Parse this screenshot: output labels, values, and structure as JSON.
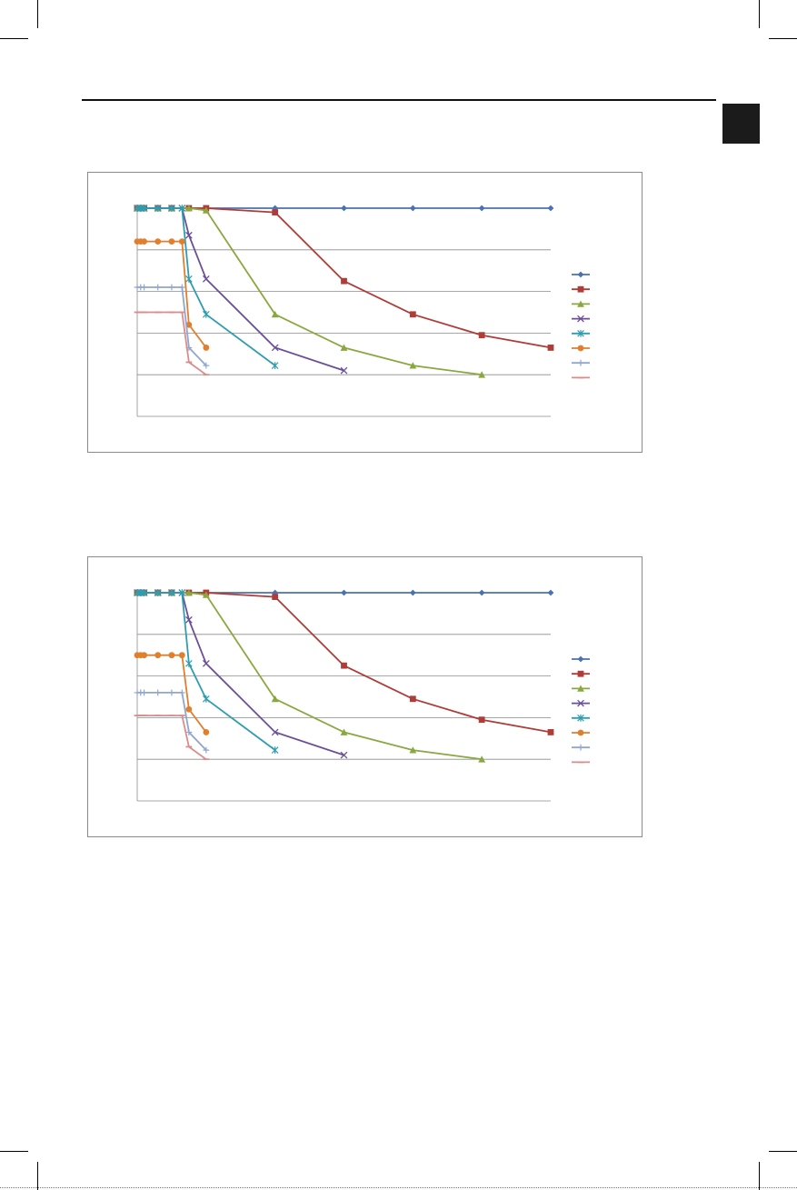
{
  "page": {
    "header_color": "#1b1b1b"
  },
  "chart_data": [
    {
      "type": "line",
      "title": "",
      "xlabel": "",
      "ylabel": "",
      "grid": true,
      "legend_position": "right",
      "x_range": [
        0,
        60
      ],
      "y_range": [
        0,
        5
      ],
      "series": [
        {
          "color": "#4a72b0",
          "marker": "diamond",
          "points": [
            [
              0,
              5
            ],
            [
              0.5,
              5
            ],
            [
              1,
              5
            ],
            [
              3,
              5
            ],
            [
              5,
              5
            ],
            [
              7.5,
              5
            ],
            [
              10,
              5
            ],
            [
              20,
              5
            ],
            [
              30,
              5
            ],
            [
              40,
              5
            ],
            [
              50,
              5
            ],
            [
              60,
              5
            ]
          ]
        },
        {
          "color": "#b03c38",
          "marker": "square",
          "points": [
            [
              0,
              5
            ],
            [
              0.5,
              5
            ],
            [
              1,
              5
            ],
            [
              3,
              5
            ],
            [
              5,
              5
            ],
            [
              7.5,
              5
            ],
            [
              10,
              5
            ],
            [
              20,
              4.9
            ],
            [
              30,
              3.25
            ],
            [
              40,
              2.45
            ],
            [
              50,
              1.95
            ],
            [
              60,
              1.65
            ]
          ]
        },
        {
          "color": "#89a83f",
          "marker": "triangle",
          "points": [
            [
              0,
              5
            ],
            [
              0.5,
              5
            ],
            [
              1,
              5
            ],
            [
              3,
              5
            ],
            [
              5,
              5
            ],
            [
              7.5,
              5
            ],
            [
              10,
              4.95
            ],
            [
              20,
              2.45
            ],
            [
              30,
              1.65
            ],
            [
              40,
              1.22
            ],
            [
              50,
              1.0
            ]
          ]
        },
        {
          "color": "#6b4f98",
          "marker": "x",
          "points": [
            [
              0,
              5
            ],
            [
              0.5,
              5
            ],
            [
              1,
              5
            ],
            [
              3,
              5
            ],
            [
              5,
              5
            ],
            [
              6.5,
              5
            ],
            [
              7.5,
              4.35
            ],
            [
              10,
              3.3
            ],
            [
              20,
              1.65
            ],
            [
              30,
              1.1
            ]
          ]
        },
        {
          "color": "#2f9db0",
          "marker": "star",
          "points": [
            [
              0,
              5
            ],
            [
              0.5,
              5
            ],
            [
              1,
              5
            ],
            [
              3,
              5
            ],
            [
              5,
              5
            ],
            [
              6.5,
              5
            ],
            [
              7.5,
              3.3
            ],
            [
              10,
              2.45
            ],
            [
              20,
              1.22
            ]
          ]
        },
        {
          "color": "#e07f2e",
          "marker": "circle",
          "points": [
            [
              0,
              4.2
            ],
            [
              0.5,
              4.2
            ],
            [
              1,
              4.2
            ],
            [
              3,
              4.2
            ],
            [
              5,
              4.2
            ],
            [
              6.5,
              4.2
            ],
            [
              7.5,
              2.2
            ],
            [
              10,
              1.65
            ]
          ]
        },
        {
          "color": "#8fa6cf",
          "marker": "plus",
          "points": [
            [
              0,
              3.1
            ],
            [
              0.5,
              3.1
            ],
            [
              1,
              3.1
            ],
            [
              3,
              3.1
            ],
            [
              5,
              3.1
            ],
            [
              6.5,
              3.1
            ],
            [
              7.5,
              1.65
            ],
            [
              10,
              1.22
            ]
          ]
        },
        {
          "color": "#d98c8c",
          "marker": "dash",
          "points": [
            [
              0,
              2.5
            ],
            [
              0.5,
              2.5
            ],
            [
              1,
              2.5
            ],
            [
              3,
              2.5
            ],
            [
              5,
              2.5
            ],
            [
              6.5,
              2.5
            ],
            [
              7.5,
              1.3
            ],
            [
              10,
              1.0
            ]
          ]
        }
      ]
    },
    {
      "type": "line",
      "title": "",
      "xlabel": "",
      "ylabel": "",
      "grid": true,
      "legend_position": "right",
      "x_range": [
        0,
        60
      ],
      "y_range": [
        0,
        5
      ],
      "series": [
        {
          "color": "#4a72b0",
          "marker": "diamond",
          "points": [
            [
              0,
              5
            ],
            [
              0.5,
              5
            ],
            [
              1,
              5
            ],
            [
              3,
              5
            ],
            [
              5,
              5
            ],
            [
              7.5,
              5
            ],
            [
              10,
              5
            ],
            [
              20,
              5
            ],
            [
              30,
              5
            ],
            [
              40,
              5
            ],
            [
              50,
              5
            ],
            [
              60,
              5
            ]
          ]
        },
        {
          "color": "#b03c38",
          "marker": "square",
          "points": [
            [
              0,
              5
            ],
            [
              0.5,
              5
            ],
            [
              1,
              5
            ],
            [
              3,
              5
            ],
            [
              5,
              5
            ],
            [
              7.5,
              5
            ],
            [
              10,
              5
            ],
            [
              20,
              4.9
            ],
            [
              30,
              3.25
            ],
            [
              40,
              2.45
            ],
            [
              50,
              1.95
            ],
            [
              60,
              1.65
            ]
          ]
        },
        {
          "color": "#89a83f",
          "marker": "triangle",
          "points": [
            [
              0,
              5
            ],
            [
              0.5,
              5
            ],
            [
              1,
              5
            ],
            [
              3,
              5
            ],
            [
              5,
              5
            ],
            [
              7.5,
              5
            ],
            [
              10,
              4.95
            ],
            [
              20,
              2.45
            ],
            [
              30,
              1.65
            ],
            [
              40,
              1.22
            ],
            [
              50,
              1.0
            ]
          ]
        },
        {
          "color": "#6b4f98",
          "marker": "x",
          "points": [
            [
              0,
              5
            ],
            [
              0.5,
              5
            ],
            [
              1,
              5
            ],
            [
              3,
              5
            ],
            [
              5,
              5
            ],
            [
              6.5,
              5
            ],
            [
              7.5,
              4.35
            ],
            [
              10,
              3.3
            ],
            [
              20,
              1.65
            ],
            [
              30,
              1.1
            ]
          ]
        },
        {
          "color": "#2f9db0",
          "marker": "star",
          "points": [
            [
              0,
              5
            ],
            [
              0.5,
              5
            ],
            [
              1,
              5
            ],
            [
              3,
              5
            ],
            [
              5,
              5
            ],
            [
              6.5,
              5
            ],
            [
              7.5,
              3.3
            ],
            [
              10,
              2.45
            ],
            [
              20,
              1.22
            ]
          ]
        },
        {
          "color": "#e07f2e",
          "marker": "circle",
          "points": [
            [
              0,
              3.5
            ],
            [
              0.5,
              3.5
            ],
            [
              1,
              3.5
            ],
            [
              3,
              3.5
            ],
            [
              5,
              3.5
            ],
            [
              6.5,
              3.5
            ],
            [
              7.5,
              2.2
            ],
            [
              10,
              1.65
            ]
          ]
        },
        {
          "color": "#8fa6cf",
          "marker": "plus",
          "points": [
            [
              0,
              2.6
            ],
            [
              0.5,
              2.6
            ],
            [
              1,
              2.6
            ],
            [
              3,
              2.6
            ],
            [
              5,
              2.6
            ],
            [
              6.5,
              2.6
            ],
            [
              7.5,
              1.65
            ],
            [
              10,
              1.22
            ]
          ]
        },
        {
          "color": "#d98c8c",
          "marker": "dash",
          "points": [
            [
              0,
              2.05
            ],
            [
              0.5,
              2.05
            ],
            [
              1,
              2.05
            ],
            [
              3,
              2.05
            ],
            [
              5,
              2.05
            ],
            [
              6.5,
              2.05
            ],
            [
              7.5,
              1.3
            ],
            [
              10,
              1.0
            ]
          ]
        }
      ]
    }
  ]
}
